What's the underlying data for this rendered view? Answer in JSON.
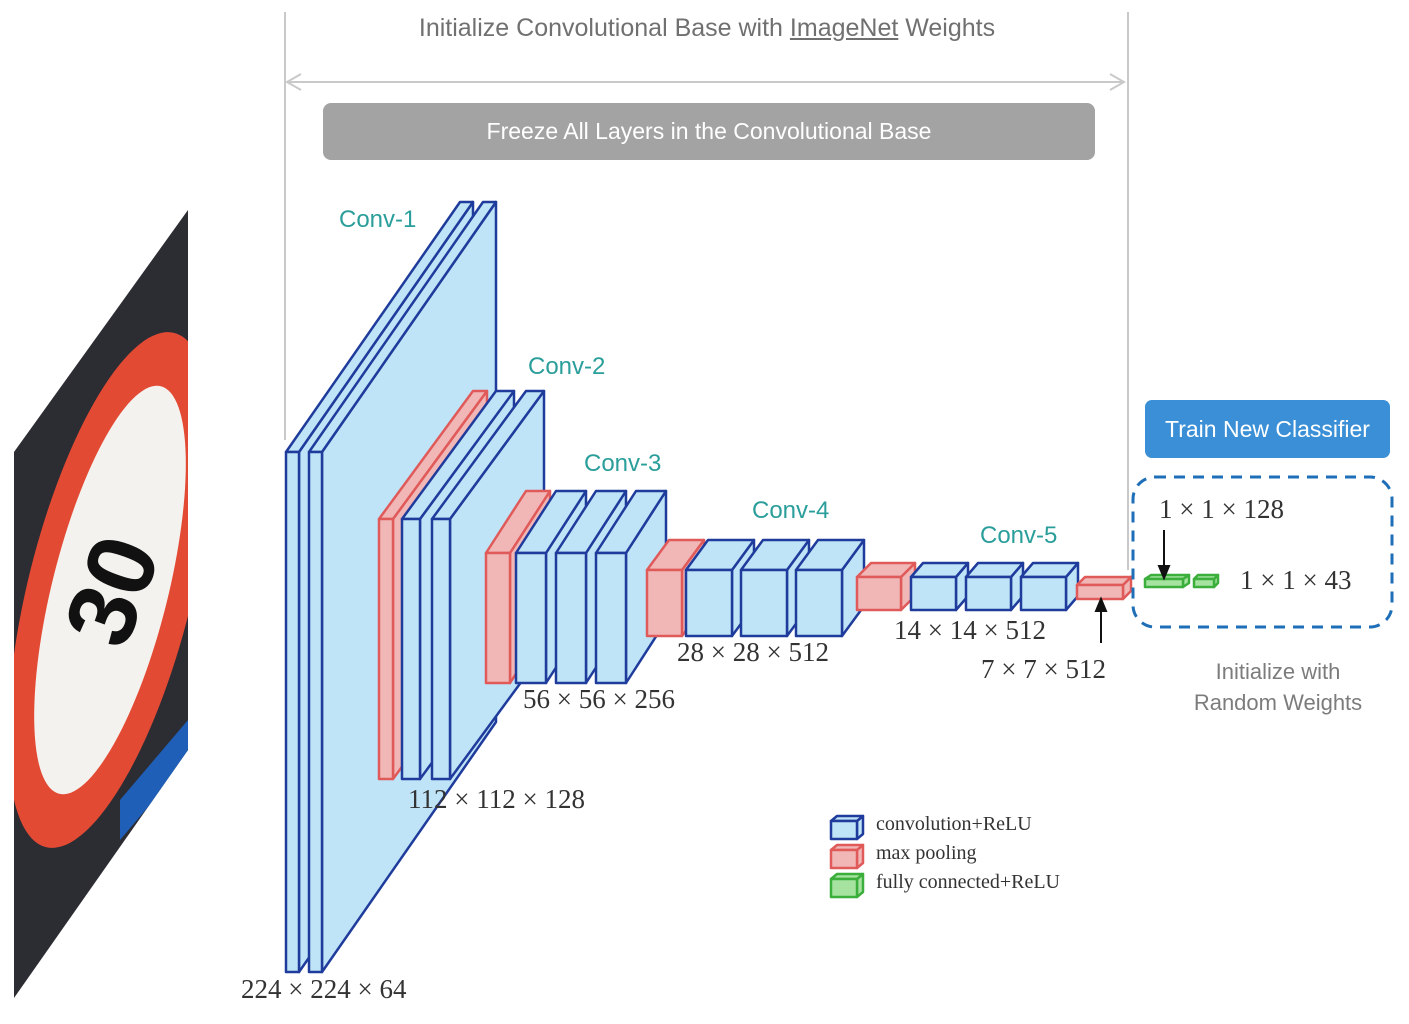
{
  "header": {
    "title_pre": "Initialize Convolutional Base with ",
    "title_link": "ImageNet",
    "title_post": " Weights",
    "freeze_label": "Freeze All Layers in the Convolutional Base"
  },
  "classifier": {
    "button_label": "Train New Classifier",
    "fc1_dim": "1 × 1 × 128",
    "fc2_dim": "1 × 1 × 43",
    "init_line1": "Initialize with",
    "init_line2": "Random Weights"
  },
  "blocks": {
    "conv1": {
      "label": "Conv-1",
      "dim": "224 × 224 × 64"
    },
    "conv2": {
      "label": "Conv-2",
      "dim": "112 × 112 × 128"
    },
    "conv3": {
      "label": "Conv-3",
      "dim": "56 × 56 × 256"
    },
    "conv4": {
      "label": "Conv-4",
      "dim": "28 × 28 × 512"
    },
    "conv5": {
      "label": "Conv-5",
      "dim": "14 × 14 × 512"
    },
    "pool5": {
      "dim": "7 × 7 × 512"
    }
  },
  "input_image": {
    "sign_text": "30"
  },
  "legend": [
    {
      "label": "convolution+ReLU"
    },
    {
      "label": "max pooling"
    },
    {
      "label": "fully connected+ReLU"
    }
  ],
  "colors": {
    "conv": "#bfe3f7",
    "conv_edge": "#1f3c9c",
    "pool": "#f1b7b7",
    "pool_edge": "#e05a5a",
    "fc": "#a6e3a1",
    "fc_edge": "#3cae3c",
    "label_teal": "#2a9e9a",
    "button_blue": "#3a8fd6",
    "banner_gray": "#a3a3a3"
  }
}
